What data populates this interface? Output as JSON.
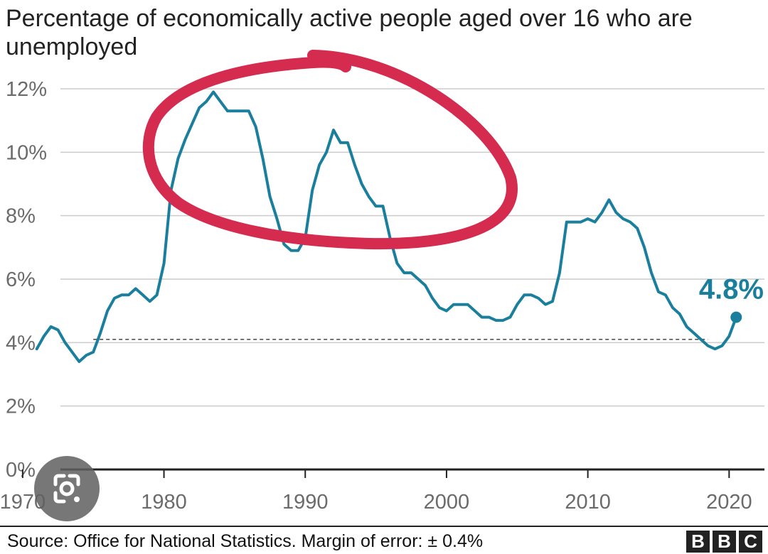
{
  "chart_data": {
    "type": "line",
    "title": "Percentage of economically active people aged over 16 who are unemployed",
    "xlabel": "",
    "ylabel": "",
    "x_ticks": [
      "1970",
      "1980",
      "1990",
      "2000",
      "2010",
      "2020"
    ],
    "y_ticks": [
      "0%",
      "2%",
      "4%",
      "6%",
      "8%",
      "10%",
      "12%"
    ],
    "xlim": [
      1969.0,
      2022.5
    ],
    "ylim": [
      0,
      12
    ],
    "grid": true,
    "legend": "none",
    "series": [
      {
        "color": "#1a7f9c",
        "x": [
          1971.0,
          1971.5,
          1972.0,
          1972.5,
          1973.0,
          1973.5,
          1974.0,
          1974.5,
          1975.0,
          1975.5,
          1976.0,
          1976.5,
          1977.0,
          1977.5,
          1978.0,
          1978.5,
          1979.0,
          1979.5,
          1980.0,
          1980.5,
          1981.0,
          1981.5,
          1982.0,
          1982.5,
          1983.0,
          1983.5,
          1984.0,
          1984.5,
          1985.0,
          1985.5,
          1986.0,
          1986.5,
          1987.0,
          1987.5,
          1988.0,
          1988.5,
          1989.0,
          1989.5,
          1990.0,
          1990.5,
          1991.0,
          1991.5,
          1992.0,
          1992.5,
          1993.0,
          1993.5,
          1994.0,
          1994.5,
          1995.0,
          1995.5,
          1996.0,
          1996.5,
          1997.0,
          1997.5,
          1998.0,
          1998.5,
          1999.0,
          1999.5,
          2000.0,
          2000.5,
          2001.0,
          2001.5,
          2002.0,
          2002.5,
          2003.0,
          2003.5,
          2004.0,
          2004.5,
          2005.0,
          2005.5,
          2006.0,
          2006.5,
          2007.0,
          2007.5,
          2008.0,
          2008.5,
          2009.0,
          2009.5,
          2010.0,
          2010.5,
          2011.0,
          2011.5,
          2012.0,
          2012.5,
          2013.0,
          2013.5,
          2014.0,
          2014.5,
          2015.0,
          2015.5,
          2016.0,
          2016.5,
          2017.0,
          2017.5,
          2018.0,
          2018.5,
          2019.0,
          2019.5,
          2020.0,
          2020.5
        ],
        "values": [
          3.8,
          4.2,
          4.5,
          4.4,
          4.0,
          3.7,
          3.4,
          3.6,
          3.7,
          4.3,
          5.0,
          5.4,
          5.5,
          5.5,
          5.7,
          5.5,
          5.3,
          5.5,
          6.5,
          8.8,
          9.8,
          10.4,
          10.9,
          11.4,
          11.6,
          11.9,
          11.6,
          11.3,
          11.3,
          11.3,
          11.3,
          10.8,
          9.8,
          8.6,
          7.9,
          7.1,
          6.9,
          6.9,
          7.3,
          8.8,
          9.6,
          10.0,
          10.7,
          10.3,
          10.3,
          9.6,
          9.0,
          8.6,
          8.3,
          8.3,
          7.3,
          6.5,
          6.2,
          6.2,
          6.0,
          5.8,
          5.4,
          5.1,
          5.0,
          5.2,
          5.2,
          5.2,
          5.0,
          4.8,
          4.8,
          4.7,
          4.7,
          4.8,
          5.2,
          5.5,
          5.5,
          5.4,
          5.2,
          5.3,
          6.2,
          7.8,
          7.8,
          7.8,
          7.9,
          7.8,
          8.1,
          8.5,
          8.1,
          7.9,
          7.8,
          7.6,
          7.0,
          6.2,
          5.6,
          5.5,
          5.1,
          4.9,
          4.5,
          4.3,
          4.1,
          3.9,
          3.8,
          3.9,
          4.2,
          4.8
        ]
      }
    ],
    "reference_line": {
      "value": 4.1,
      "from": 1975.0,
      "to": 2018.5,
      "style": "dashed"
    },
    "annotation": {
      "text": "4.8%",
      "x": 2020.5,
      "value": 4.8,
      "color": "#1a7f9c"
    },
    "highlight_circle": {
      "color": "#d42b4f",
      "around": "1980s-early 1990s peaks"
    }
  },
  "footer": {
    "source": "Source: Office for National Statistics. Margin of error: ± 0.4%",
    "logo": [
      "B",
      "B",
      "C"
    ]
  },
  "overlay": {
    "icon": "google-lens-icon"
  }
}
